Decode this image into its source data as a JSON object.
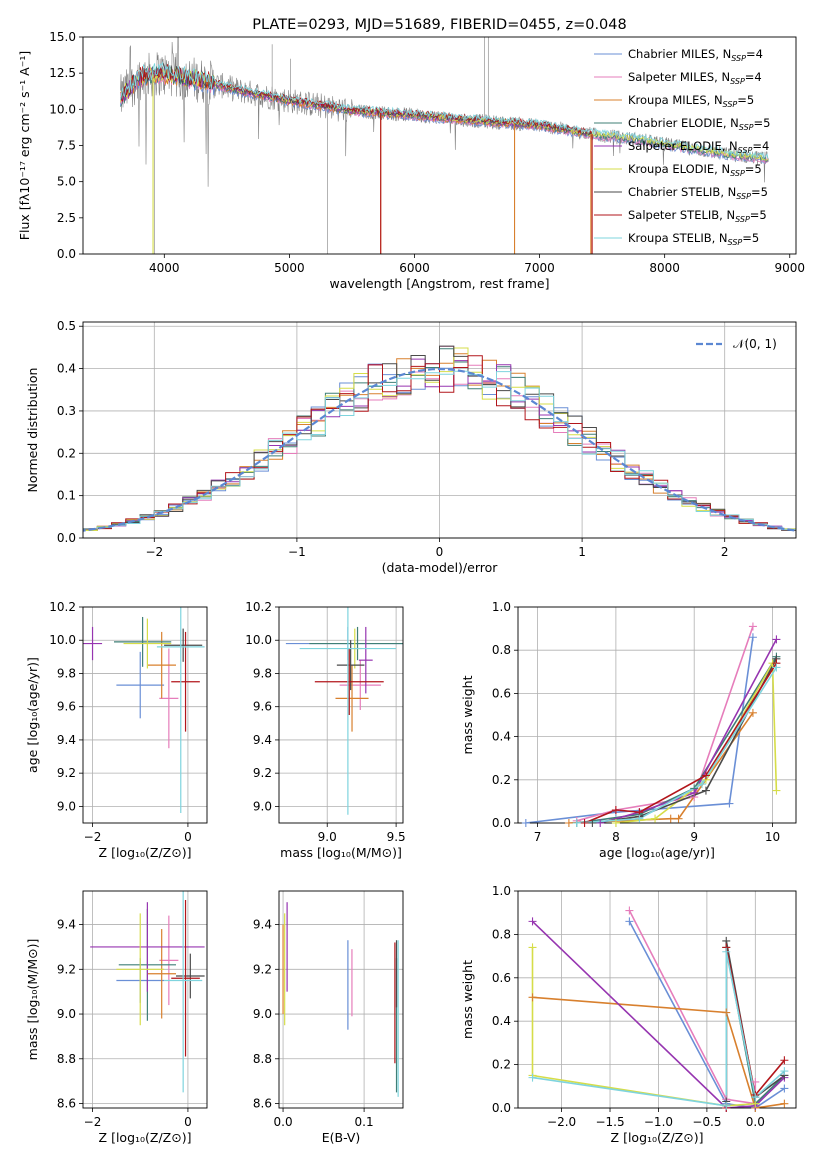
{
  "colors": {
    "series": [
      "#6a8fd6",
      "#e67dbb",
      "#d8802e",
      "#3f7f76",
      "#9635b0",
      "#d6dd48",
      "#4a4a4a",
      "#b2161b",
      "#7fd4de"
    ],
    "spectrum_observed": "#808080",
    "normal_curve": "#5b87d2",
    "grid": "#b0b0b0"
  },
  "chart_data": [
    {
      "type": "line",
      "title": "PLATE=0293, MJD=51689, FIBERID=0455, z=0.048",
      "xlabel": "wavelength [Angstrom, rest frame]",
      "ylabel": "Flux [fλ10⁻¹⁷ erg cm⁻² s⁻¹ A⁻¹]",
      "xlim": [
        3350,
        9050
      ],
      "ylim": [
        0,
        15
      ],
      "xticks": [
        4000,
        5000,
        6000,
        7000,
        8000,
        9000
      ],
      "yticks": [
        0.0,
        2.5,
        5.0,
        7.5,
        10.0,
        12.5,
        15.0
      ],
      "legend_position": "top-right",
      "legend": [
        {
          "name": "Chabrier MILES, N",
          "sub": "SSP",
          "suffix": "=4"
        },
        {
          "name": "Salpeter MILES, N",
          "sub": "SSP",
          "suffix": "=4"
        },
        {
          "name": "Kroupa MILES, N",
          "sub": "SSP",
          "suffix": "=5"
        },
        {
          "name": "Chabrier ELODIE, N",
          "sub": "SSP",
          "suffix": "=5"
        },
        {
          "name": "Salpeter ELODIE, N",
          "sub": "SSP",
          "suffix": "=4"
        },
        {
          "name": "Kroupa ELODIE, N",
          "sub": "SSP",
          "suffix": "=5"
        },
        {
          "name": "Chabrier STELIB, N",
          "sub": "SSP",
          "suffix": "=5"
        },
        {
          "name": "Salpeter STELIB, N",
          "sub": "SSP",
          "suffix": "=5"
        },
        {
          "name": "Kroupa STELIB, N",
          "sub": "SSP",
          "suffix": "=5"
        }
      ],
      "continuum": {
        "x": [
          3650,
          3800,
          3950,
          4100,
          4300,
          4600,
          5000,
          5500,
          6000,
          6500,
          7000,
          7400,
          7800,
          8200,
          8500,
          8800
        ],
        "y": [
          10.8,
          12.2,
          12.5,
          12.3,
          12.0,
          11.3,
          10.6,
          9.9,
          9.6,
          9.2,
          8.9,
          8.3,
          7.9,
          7.3,
          6.9,
          6.6
        ]
      },
      "model_ranges": [
        [
          3650,
          8830
        ],
        [
          3650,
          8830
        ],
        [
          3650,
          7420
        ],
        [
          3650,
          8830
        ],
        [
          3650,
          7420
        ],
        [
          3650,
          8830
        ],
        [
          3650,
          7420
        ],
        [
          3650,
          7420
        ],
        [
          3650,
          8830
        ]
      ]
    },
    {
      "type": "step",
      "xlabel": "(data-model)/error",
      "ylabel": "Normed distribution",
      "xlim": [
        -2.5,
        2.5
      ],
      "ylim": [
        0,
        0.51
      ],
      "xticks": [
        -2,
        -1,
        0,
        1,
        2
      ],
      "yticks": [
        0.0,
        0.1,
        0.2,
        0.3,
        0.4,
        0.5
      ],
      "bin_width": 0.1,
      "legend": "𝒩(0, 1)",
      "legend_position": "top-right",
      "curve": "normal(0,1)"
    },
    {
      "type": "errorbar",
      "xlabel": "Z [log₁₀(Z/Z⊙)]",
      "ylabel": "age  [log₁₀(age/yr)]",
      "xlim": [
        -2.2,
        0.4
      ],
      "ylim": [
        8.9,
        10.2
      ],
      "xticks": [
        -2,
        0
      ],
      "yticks": [
        9.0,
        9.2,
        9.4,
        9.6,
        9.8,
        10.0,
        10.2
      ],
      "points": [
        {
          "x": -1.0,
          "y": 9.73,
          "xerr": 0.5,
          "yerr": 0.2
        },
        {
          "x": -0.4,
          "y": 9.65,
          "xerr": 0.2,
          "yerr": 0.3
        },
        {
          "x": -0.55,
          "y": 9.85,
          "xerr": 0.3,
          "yerr": 0.2
        },
        {
          "x": -0.95,
          "y": 9.99,
          "xerr": 0.6,
          "yerr": 0.15
        },
        {
          "x": -2.0,
          "y": 9.98,
          "xerr": 0.2,
          "yerr": 0.1
        },
        {
          "x": -0.85,
          "y": 9.98,
          "xerr": 0.5,
          "yerr": 0.15
        },
        {
          "x": -0.1,
          "y": 9.97,
          "xerr": 0.4,
          "yerr": 0.1
        },
        {
          "x": -0.05,
          "y": 9.75,
          "xerr": 0.3,
          "yerr": 0.3
        },
        {
          "x": -0.15,
          "y": 9.96,
          "xerr": 0.5,
          "yerr": 1.0
        }
      ]
    },
    {
      "type": "errorbar",
      "xlabel": "mass [log₁₀(M/M⊙)]",
      "ylabel": "",
      "xlim": [
        8.65,
        9.55
      ],
      "ylim": [
        8.9,
        10.2
      ],
      "xticks": [
        9.0,
        9.5
      ],
      "yticks": [
        9.0,
        9.2,
        9.4,
        9.6,
        9.8,
        10.0,
        10.2
      ],
      "points": [
        {
          "x": 9.15,
          "y": 9.98,
          "xerr": 0.45,
          "yerr": 0.1
        },
        {
          "x": 9.24,
          "y": 9.73,
          "xerr": 0.15,
          "yerr": 0.15
        },
        {
          "x": 9.18,
          "y": 9.65,
          "xerr": 0.12,
          "yerr": 0.2
        },
        {
          "x": 9.22,
          "y": 9.98,
          "xerr": 0.35,
          "yerr": 0.1
        },
        {
          "x": 9.28,
          "y": 9.88,
          "xerr": 0.05,
          "yerr": 0.2
        },
        {
          "x": 9.2,
          "y": 9.95,
          "xerr": 0.05,
          "yerr": 0.12
        },
        {
          "x": 9.17,
          "y": 9.85,
          "xerr": 0.1,
          "yerr": 0.15
        },
        {
          "x": 9.16,
          "y": 9.75,
          "xerr": 0.25,
          "yerr": 0.2
        },
        {
          "x": 9.15,
          "y": 9.95,
          "xerr": 0.35,
          "yerr": 1.0
        }
      ]
    },
    {
      "type": "line",
      "xlabel": "age  [log₁₀(age/yr)]",
      "ylabel": "mass weight",
      "xlim": [
        6.75,
        10.3
      ],
      "ylim": [
        0,
        1
      ],
      "xticks": [
        7,
        8,
        9,
        10
      ],
      "yticks": [
        0.0,
        0.2,
        0.4,
        0.6,
        0.8,
        1.0
      ],
      "series": [
        {
          "x": [
            6.85,
            8.0,
            9.45,
            9.75
          ],
          "y": [
            0.0,
            0.05,
            0.09,
            0.86
          ]
        },
        {
          "x": [
            7.5,
            8.0,
            9.0,
            9.75
          ],
          "y": [
            0.01,
            0.06,
            0.12,
            0.91
          ]
        },
        {
          "x": [
            7.4,
            8.7,
            8.8,
            9.75
          ],
          "y": [
            0.0,
            0.02,
            0.02,
            0.51
          ]
        },
        {
          "x": [
            7.5,
            8.3,
            9.0,
            10.05
          ],
          "y": [
            0.0,
            0.04,
            0.16,
            0.77
          ]
        },
        {
          "x": [
            7.8,
            8.3,
            9.0,
            10.05
          ],
          "y": [
            0.0,
            0.05,
            0.14,
            0.85
          ]
        },
        {
          "x": [
            8.0,
            8.5,
            9.15,
            10.0,
            10.05
          ],
          "y": [
            0.0,
            0.02,
            0.2,
            0.74,
            0.15
          ]
        },
        {
          "x": [
            7.7,
            8.3,
            9.15,
            10.05
          ],
          "y": [
            0.0,
            0.03,
            0.15,
            0.76
          ]
        },
        {
          "x": [
            7.6,
            8.0,
            8.3,
            9.15,
            10.05
          ],
          "y": [
            0.0,
            0.06,
            0.05,
            0.22,
            0.74
          ]
        },
        {
          "x": [
            7.5,
            8.3,
            9.1,
            10.05
          ],
          "y": [
            0.0,
            0.02,
            0.18,
            0.72
          ]
        }
      ]
    },
    {
      "type": "errorbar",
      "xlabel": "Z [log₁₀(Z/Z⊙)]",
      "ylabel": "mass [log₁₀(M/M⊙)]",
      "xlim": [
        -2.2,
        0.4
      ],
      "ylim": [
        8.58,
        9.55
      ],
      "xticks": [
        -2,
        0
      ],
      "yticks": [
        8.6,
        8.8,
        9.0,
        9.2,
        9.4
      ],
      "points": [
        {
          "x": -1.0,
          "y": 9.15,
          "xerr": 0.5,
          "yerr": 0.1
        },
        {
          "x": -0.4,
          "y": 9.24,
          "xerr": 0.2,
          "yerr": 0.2
        },
        {
          "x": -0.55,
          "y": 9.18,
          "xerr": 0.3,
          "yerr": 0.2
        },
        {
          "x": -0.85,
          "y": 9.22,
          "xerr": 0.6,
          "yerr": 0.25
        },
        {
          "x": -0.85,
          "y": 9.3,
          "xerr": 1.2,
          "yerr": 0.2
        },
        {
          "x": -1.0,
          "y": 9.2,
          "xerr": 0.5,
          "yerr": 0.25
        },
        {
          "x": 0.05,
          "y": 9.17,
          "xerr": 0.3,
          "yerr": 0.1
        },
        {
          "x": -0.05,
          "y": 9.16,
          "xerr": 0.3,
          "yerr": 0.35
        },
        {
          "x": -0.1,
          "y": 9.15,
          "xerr": 0.4,
          "yerr": 0.5
        }
      ]
    },
    {
      "type": "errorbar",
      "xlabel": "E(B-V)",
      "ylabel": "",
      "xlim": [
        -0.005,
        0.148
      ],
      "ylim": [
        8.58,
        9.55
      ],
      "xticks": [
        0.0,
        0.1
      ],
      "yticks": [
        8.6,
        8.8,
        9.0,
        9.2,
        9.4
      ],
      "points": [
        {
          "x": 0.08,
          "y": 9.13,
          "xerr": 0.0,
          "yerr": 0.2
        },
        {
          "x": 0.085,
          "y": 9.14,
          "xerr": 0.0,
          "yerr": 0.15
        },
        {
          "x": 0.0,
          "y": 9.2,
          "xerr": 0.0,
          "yerr": 0.2
        },
        {
          "x": 0.14,
          "y": 8.95,
          "xerr": 0.0,
          "yerr": 0.3
        },
        {
          "x": 0.005,
          "y": 9.3,
          "xerr": 0.0,
          "yerr": 0.2
        },
        {
          "x": 0.002,
          "y": 9.2,
          "xerr": 0.0,
          "yerr": 0.25
        },
        {
          "x": 0.14,
          "y": 9.18,
          "xerr": 0.0,
          "yerr": 0.15
        },
        {
          "x": 0.138,
          "y": 9.05,
          "xerr": 0.0,
          "yerr": 0.27
        },
        {
          "x": 0.142,
          "y": 8.98,
          "xerr": 0.0,
          "yerr": 0.35
        }
      ]
    },
    {
      "type": "line",
      "xlabel": "Z [log₁₀(Z/Z⊙)]",
      "ylabel": "mass weight",
      "xlim": [
        -2.45,
        0.42
      ],
      "ylim": [
        0,
        1
      ],
      "xticks": [
        -2.0,
        -1.5,
        -1.0,
        -0.5,
        0.0
      ],
      "yticks": [
        0.0,
        0.2,
        0.4,
        0.6,
        0.8,
        1.0
      ],
      "series": [
        {
          "x": [
            -1.3,
            -0.3,
            0.0,
            0.3
          ],
          "y": [
            0.86,
            0.02,
            0.0,
            0.09
          ]
        },
        {
          "x": [
            -1.3,
            -0.3,
            0.0,
            0.0
          ],
          "y": [
            0.91,
            0.04,
            0.02,
            0.12
          ]
        },
        {
          "x": [
            -2.3,
            -0.3,
            0.0,
            0.3
          ],
          "y": [
            0.51,
            0.44,
            0.0,
            0.02
          ]
        },
        {
          "x": [
            -0.3,
            -0.3,
            0.0,
            0.3
          ],
          "y": [
            0.01,
            0.74,
            0.02,
            0.15
          ]
        },
        {
          "x": [
            -2.3,
            -0.3,
            0.0,
            0.3
          ],
          "y": [
            0.86,
            0.0,
            0.01,
            0.14
          ]
        },
        {
          "x": [
            -2.3,
            -2.3,
            -0.3,
            0.0
          ],
          "y": [
            0.74,
            0.15,
            0.01,
            0.02
          ]
        },
        {
          "x": [
            -0.3,
            -0.3,
            0.0,
            0.3
          ],
          "y": [
            0.03,
            0.77,
            0.05,
            0.15
          ]
        },
        {
          "x": [
            -0.3,
            -0.3,
            0.0,
            0.3
          ],
          "y": [
            0.0,
            0.74,
            0.06,
            0.22
          ]
        },
        {
          "x": [
            -2.3,
            -0.3,
            -0.3,
            0.0,
            0.3
          ],
          "y": [
            0.14,
            0.01,
            0.72,
            0.05,
            0.17
          ]
        }
      ]
    }
  ]
}
